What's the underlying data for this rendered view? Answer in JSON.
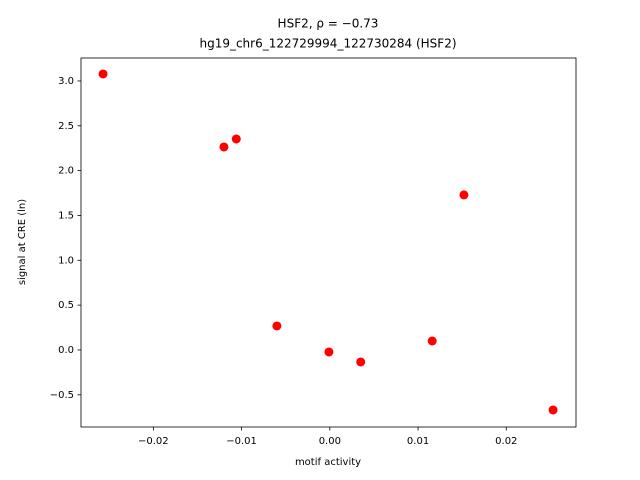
{
  "chart_data": {
    "type": "scatter",
    "title": "HSF2, ρ = −0.73",
    "subtitle": "hg19_chr6_122729994_122730284 (HSF2)",
    "x_label": "motif activity",
    "y_label": "signal at CRE (ln)",
    "color": "#ff0000",
    "x": [
      -0.0257,
      -0.012,
      -0.0106,
      -0.006,
      -0.0001,
      0.0035,
      0.0116,
      0.0152,
      0.0253
    ],
    "values": [
      3.078,
      2.264,
      2.353,
      0.268,
      -0.022,
      -0.134,
      0.1,
      1.729,
      -0.669
    ],
    "xlim": [
      -0.0282,
      0.0279
    ],
    "ylim": [
      -0.859,
      3.256
    ],
    "xticks": [
      {
        "value": -0.02,
        "label": "−0.02"
      },
      {
        "value": -0.01,
        "label": "−0.01"
      },
      {
        "value": 0,
        "label": "0.00"
      },
      {
        "value": 0.01,
        "label": "0.01"
      },
      {
        "value": 0.02,
        "label": "0.02"
      }
    ],
    "yticks": [
      {
        "value": -0.5,
        "label": "−0.5"
      },
      {
        "value": 0,
        "label": "0.0"
      },
      {
        "value": 0.5,
        "label": "0.5"
      },
      {
        "value": 1,
        "label": "1.0"
      },
      {
        "value": 1.5,
        "label": "1.5"
      },
      {
        "value": 2,
        "label": "2.0"
      },
      {
        "value": 2.5,
        "label": "2.5"
      },
      {
        "value": 3,
        "label": "3.0"
      }
    ]
  }
}
